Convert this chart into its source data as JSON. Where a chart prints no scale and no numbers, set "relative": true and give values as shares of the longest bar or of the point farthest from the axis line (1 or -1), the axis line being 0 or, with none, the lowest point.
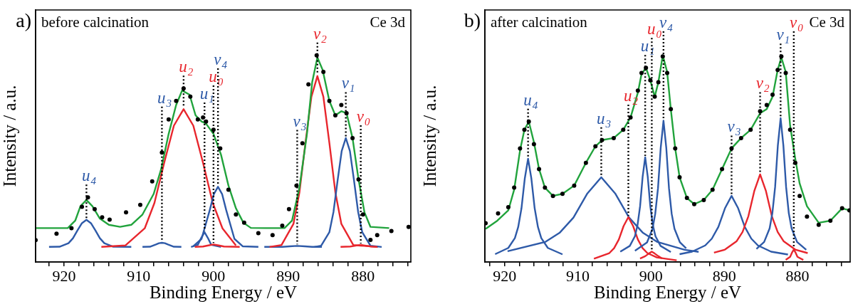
{
  "chart_data": [
    {
      "type": "line",
      "title": "a)",
      "xlabel": "Binding Energy / eV",
      "ylabel": "Intensity / a.u.",
      "annotations": [
        "before calcination",
        "Ce 3d"
      ],
      "relative": true,
      "grid": false,
      "legend": false,
      "line_style": "solid",
      "marker": "none",
      "xlim": [
        923.8,
        873.6
      ],
      "xticks": [
        {
          "value": 922,
          "label": null
        },
        920,
        {
          "value": 918,
          "label": null
        },
        {
          "value": 916,
          "label": null
        },
        {
          "value": 914,
          "label": null
        },
        {
          "value": 912,
          "label": null
        },
        910,
        {
          "value": 908,
          "label": null
        },
        {
          "value": 906,
          "label": null
        },
        {
          "value": 904,
          "label": null
        },
        {
          "value": 902,
          "label": null
        },
        900,
        {
          "value": 898,
          "label": null
        },
        {
          "value": 896,
          "label": null
        },
        {
          "value": 894,
          "label": null
        },
        {
          "value": 892,
          "label": null
        },
        890,
        {
          "value": 888,
          "label": null
        },
        {
          "value": 886,
          "label": null
        },
        {
          "value": 884,
          "label": null
        },
        {
          "value": 882,
          "label": null
        },
        880,
        {
          "value": 878,
          "label": null
        },
        {
          "value": 876,
          "label": null
        },
        {
          "value": 874,
          "label": null
        }
      ],
      "ref_lines": [
        {
          "axis": "x",
          "value": 917.0,
          "label": "u$_{4}$",
          "color": "#000000",
          "line_style": "dotted"
        },
        {
          "axis": "x",
          "value": 906.9,
          "label": "u$_{3}$",
          "color": "#000000",
          "line_style": "dotted"
        },
        {
          "axis": "x",
          "value": 904.0,
          "label": "u$_{2}$",
          "color": "#000000",
          "line_style": "dotted"
        },
        {
          "axis": "x",
          "value": 901.2,
          "label": "u$_{1}$",
          "color": "#000000",
          "line_style": "dotted"
        },
        {
          "axis": "x",
          "value": 900.0,
          "label": "u$_{0}$",
          "color": "#000000",
          "line_style": "dotted"
        },
        {
          "axis": "x",
          "value": 899.4,
          "label": "v$_{4}$",
          "color": "#000000",
          "line_style": "dotted"
        },
        {
          "axis": "x",
          "value": 888.8,
          "label": "v$_{3}$",
          "color": "#000000",
          "line_style": "dotted"
        },
        {
          "axis": "x",
          "value": 886.1,
          "label": "v$_{2}$",
          "color": "#000000",
          "line_style": "dotted"
        },
        {
          "axis": "x",
          "value": 882.3,
          "label": "v$_{1}$",
          "color": "#000000",
          "line_style": "dotted"
        },
        {
          "axis": "x",
          "value": 880.3,
          "label": "v$_{0}$",
          "color": "#000000",
          "line_style": "dotted"
        }
      ],
      "series": [
        {
          "type": "line",
          "color": "#2e5aa8",
          "x": [
            922,
            920.6,
            919.4,
            918.8,
            918.2,
            917.6,
            917.0,
            916.4,
            915.8,
            915.2,
            914.6,
            913.4,
            911
          ],
          "values": [
            0.073,
            0.074,
            0.091,
            0.115,
            0.153,
            0.188,
            0.204,
            0.188,
            0.153,
            0.115,
            0.091,
            0.074,
            0.073
          ]
        },
        {
          "type": "line",
          "color": "#e8262d",
          "x": [
            915,
            911.8,
            909.2,
            907.9,
            906.6,
            905.3,
            904.0,
            902.7,
            901.4,
            900.1,
            898.8,
            897
          ],
          "values": [
            0.073,
            0.08,
            0.163,
            0.286,
            0.48,
            0.66,
            0.74,
            0.66,
            0.48,
            0.286,
            0.163,
            0.08
          ]
        },
        {
          "type": "line",
          "color": "#2e5aa8",
          "x": [
            909.5,
            908.5,
            907.7,
            907.3,
            906.9,
            906.5,
            906.1,
            905.3,
            904.3
          ],
          "values": [
            0.073,
            0.074,
            0.085,
            0.091,
            0.093,
            0.091,
            0.085,
            0.074,
            0.073
          ]
        },
        {
          "type": "line",
          "color": "#2e5aa8",
          "x": [
            903,
            902.1,
            901.65,
            901.2,
            900.75,
            900.3,
            899
          ],
          "values": [
            0.073,
            0.083,
            0.116,
            0.144,
            0.116,
            0.083,
            0.073
          ]
        },
        {
          "type": "line",
          "color": "#e8262d",
          "x": [
            902.5,
            901.4,
            900.7,
            900,
            899.3,
            898.6,
            896.5
          ],
          "values": [
            0.073,
            0.075,
            0.08,
            0.085,
            0.08,
            0.075,
            0.073
          ]
        },
        {
          "type": "line",
          "color": "#2e5aa8",
          "x": [
            902.7,
            901.6,
            900.5,
            899.95,
            899.4,
            898.85,
            898.3,
            897.2,
            896.1,
            894
          ],
          "values": [
            0.076,
            0.112,
            0.251,
            0.329,
            0.364,
            0.329,
            0.251,
            0.112,
            0.076,
            0.073
          ]
        },
        {
          "type": "line",
          "color": "#2e5aa8",
          "x": [
            893.2,
            890.8,
            889.8,
            888.8,
            887.8,
            886.8,
            885.5
          ],
          "values": [
            0.073,
            0.073,
            0.076,
            0.078,
            0.076,
            0.073,
            0.073
          ]
        },
        {
          "type": "line",
          "color": "#e8262d",
          "x": [
            892.5,
            890.9,
            889.3,
            888.5,
            887.7,
            886.9,
            886.1,
            885.3,
            884.5,
            883.7,
            882.9,
            881.3,
            878
          ],
          "values": [
            0.073,
            0.082,
            0.185,
            0.338,
            0.577,
            0.8,
            0.9,
            0.8,
            0.577,
            0.338,
            0.185,
            0.082,
            0.073
          ]
        },
        {
          "type": "line",
          "color": "#2e5aa8",
          "x": [
            886.5,
            885.6,
            884.5,
            883.95,
            883.4,
            882.85,
            882.3,
            881.75,
            881.2,
            880.65,
            880.1,
            879.0,
            877.5
          ],
          "values": [
            0.073,
            0.079,
            0.144,
            0.242,
            0.394,
            0.537,
            0.6,
            0.537,
            0.394,
            0.242,
            0.144,
            0.079,
            0.073
          ]
        },
        {
          "type": "line",
          "color": "#e8262d",
          "x": [
            883,
            881.7,
            881,
            880.3,
            879.6,
            878.9,
            878.1
          ],
          "values": [
            0.073,
            0.075,
            0.079,
            0.083,
            0.079,
            0.075,
            0.073
          ]
        },
        {
          "type": "line",
          "color": "#21a33c",
          "x": [
            923.8,
            919.5,
            918.5,
            917.8,
            917.0,
            916.2,
            915.2,
            914.0,
            912.5,
            911,
            909.5,
            908.0,
            907,
            906,
            905,
            904.2,
            903.2,
            902.4,
            901.6,
            901,
            900,
            899,
            898,
            897,
            896,
            895,
            893,
            890.5,
            889.5,
            888.5,
            887.5,
            886.8,
            886.1,
            885.4,
            884.5,
            883.7,
            882.9,
            882.2,
            881.4,
            880.6,
            879.8,
            879,
            876.5
          ],
          "values": [
            0.164,
            0.164,
            0.2,
            0.27,
            0.3,
            0.27,
            0.21,
            0.18,
            0.17,
            0.18,
            0.23,
            0.33,
            0.45,
            0.62,
            0.76,
            0.83,
            0.81,
            0.71,
            0.68,
            0.67,
            0.62,
            0.52,
            0.37,
            0.26,
            0.19,
            0.165,
            0.164,
            0.164,
            0.2,
            0.36,
            0.62,
            0.87,
            0.99,
            0.93,
            0.78,
            0.71,
            0.73,
            0.72,
            0.6,
            0.4,
            0.24,
            0.17,
            0.164
          ]
        },
        {
          "type": "scatter",
          "marker": "circle",
          "color": "#000000",
          "x": [
            923.8,
            921,
            919,
            917.6,
            916.8,
            915.9,
            914.9,
            913.9,
            911.7,
            909.8,
            908.2,
            906.9,
            906.0,
            905.0,
            904.0,
            903.1,
            902.1,
            901.4,
            901.0,
            900.0,
            899.1,
            898.0,
            897.0,
            895.9,
            894.0,
            892.1,
            890.8,
            889.9,
            888.9,
            888.1,
            887.3,
            886.2,
            885.3,
            884.5,
            883.7,
            882.9,
            882.2,
            881.4,
            880.6,
            880.0,
            879.0,
            878.1,
            876.2,
            873.9
          ],
          "values": [
            0.106,
            0.137,
            0.164,
            0.267,
            0.313,
            0.256,
            0.216,
            0.205,
            0.24,
            0.277,
            0.39,
            0.53,
            0.69,
            0.78,
            0.84,
            0.8,
            0.69,
            0.7,
            0.68,
            0.64,
            0.55,
            0.35,
            0.23,
            0.19,
            0.14,
            0.13,
            0.176,
            0.256,
            0.37,
            0.575,
            0.86,
            1.0,
            0.92,
            0.78,
            0.71,
            0.76,
            0.72,
            0.6,
            0.4,
            0.23,
            0.107,
            0.13,
            0.15,
            0.17
          ]
        }
      ]
    },
    {
      "type": "line",
      "title": "b)",
      "xlabel": "Binding Energy / eV",
      "ylabel": "Intensity / a.u.",
      "annotations": [
        "after calcination",
        "Ce 3d"
      ],
      "relative": true,
      "grid": false,
      "legend": false,
      "line_style": "solid",
      "marker": "none",
      "xlim": [
        922.7,
        872.8
      ],
      "xticks": [
        {
          "value": 922,
          "label": null
        },
        920,
        {
          "value": 918,
          "label": null
        },
        {
          "value": 916,
          "label": null
        },
        {
          "value": 914,
          "label": null
        },
        {
          "value": 912,
          "label": null
        },
        910,
        {
          "value": 908,
          "label": null
        },
        {
          "value": 906,
          "label": null
        },
        {
          "value": 904,
          "label": null
        },
        {
          "value": 902,
          "label": null
        },
        900,
        {
          "value": 898,
          "label": null
        },
        {
          "value": 896,
          "label": null
        },
        {
          "value": 894,
          "label": null
        },
        {
          "value": 892,
          "label": null
        },
        890,
        {
          "value": 888,
          "label": null
        },
        {
          "value": 886,
          "label": null
        },
        {
          "value": 884,
          "label": null
        },
        {
          "value": 882,
          "label": null
        },
        880,
        {
          "value": 878,
          "label": null
        },
        {
          "value": 876,
          "label": null
        },
        {
          "value": 874,
          "label": null
        }
      ],
      "ref_lines": [
        {
          "axis": "x",
          "value": 916.8,
          "label": "u$_{4}$",
          "color": "#000000",
          "line_style": "dotted"
        },
        {
          "axis": "x",
          "value": 906.8,
          "label": "u$_{3}$",
          "color": "#000000",
          "line_style": "dotted"
        },
        {
          "axis": "x",
          "value": 903.1,
          "label": "u$_{2}$",
          "color": "#000000",
          "line_style": "dotted"
        },
        {
          "axis": "x",
          "value": 900.8,
          "label": "u$_{1}$",
          "color": "#000000",
          "line_style": "dotted"
        },
        {
          "axis": "x",
          "value": 899.9,
          "label": "u$_{0}$",
          "color": "#000000",
          "line_style": "dotted"
        },
        {
          "axis": "x",
          "value": 898.3,
          "label": "v$_{4}$",
          "color": "#000000",
          "line_style": "dotted"
        },
        {
          "axis": "x",
          "value": 889.0,
          "label": "v$_{3}$",
          "color": "#000000",
          "line_style": "dotted"
        },
        {
          "axis": "x",
          "value": 885.1,
          "label": "v$_{2}$",
          "color": "#000000",
          "line_style": "dotted"
        },
        {
          "axis": "x",
          "value": 882.3,
          "label": "v$_{1}$",
          "color": "#000000",
          "line_style": "dotted"
        },
        {
          "axis": "x",
          "value": 880.5,
          "label": "v$_{0}$",
          "color": "#000000",
          "line_style": "dotted"
        }
      ],
      "series": [
        {
          "type": "line",
          "color": "#2e5aa8",
          "x": [
            921.3,
            919.5,
            918.6,
            918.15,
            917.7,
            917.25,
            916.8,
            916.35,
            915.9,
            915.45,
            915.0,
            914.1,
            912.1
          ],
          "values": [
            0.038,
            0.068,
            0.116,
            0.169,
            0.26,
            0.404,
            0.5,
            0.404,
            0.26,
            0.169,
            0.116,
            0.068,
            0.037
          ]
        },
        {
          "type": "line",
          "color": "#2e5aa8",
          "x": [
            919.6,
            914.4,
            912.5,
            910.6,
            908.7,
            906.8,
            904.9,
            903.0,
            901.1,
            899.2,
            895.4,
            893.5
          ],
          "values": [
            0.052,
            0.098,
            0.141,
            0.215,
            0.332,
            0.41,
            0.332,
            0.215,
            0.141,
            0.098,
            0.059,
            0.049
          ]
        },
        {
          "type": "line",
          "color": "#e8262d",
          "x": [
            907.8,
            905.7,
            905.05,
            904.4,
            903.75,
            903.1,
            902.45,
            901.8,
            901.15,
            900.5,
            899.2,
            896.5
          ],
          "values": [
            0.016,
            0.043,
            0.067,
            0.109,
            0.174,
            0.217,
            0.174,
            0.109,
            0.067,
            0.043,
            0.022,
            0.008
          ]
        },
        {
          "type": "line",
          "color": "#2e5aa8",
          "x": [
            904.2,
            902.9,
            902.2,
            901.85,
            901.5,
            901.15,
            900.8,
            900.45,
            900.1,
            899.75,
            899.4,
            898.7,
            897.3
          ],
          "values": [
            0.05,
            0.078,
            0.125,
            0.178,
            0.269,
            0.412,
            0.507,
            0.412,
            0.269,
            0.178,
            0.125,
            0.078,
            0.048
          ]
        },
        {
          "type": "line",
          "color": "#e8262d",
          "x": [
            901.5,
            900.8,
            900.3,
            899.9,
            899.5,
            899.0,
            898.5
          ],
          "values": [
            0.017,
            0.028,
            0.041,
            0.05,
            0.041,
            0.028,
            0.017
          ]
        },
        {
          "type": "line",
          "color": "#2e5aa8",
          "x": [
            902.2,
            900.55,
            899.8,
            899.43,
            899.05,
            898.68,
            898.3,
            897.92,
            897.55,
            897.18,
            896.8,
            896.05,
            895.2
          ],
          "values": [
            0.054,
            0.095,
            0.161,
            0.233,
            0.357,
            0.553,
            0.684,
            0.553,
            0.357,
            0.233,
            0.161,
            0.095,
            0.066
          ]
        },
        {
          "type": "line",
          "color": "#2e5aa8",
          "x": [
            896.1,
            894.4,
            892.6,
            891.7,
            890.8,
            889.9,
            889.0,
            888.1,
            887.2,
            886.3,
            885.4,
            883.6,
            881.3
          ],
          "values": [
            0.038,
            0.05,
            0.08,
            0.113,
            0.17,
            0.26,
            0.32,
            0.26,
            0.17,
            0.113,
            0.08,
            0.05,
            0.036
          ]
        },
        {
          "type": "line",
          "color": "#e8262d",
          "x": [
            891.4,
            889.9,
            888.3,
            887.5,
            886.7,
            885.9,
            885.1,
            884.3,
            883.5,
            882.7,
            881.9,
            880.3,
            878.6
          ],
          "values": [
            0.045,
            0.06,
            0.101,
            0.145,
            0.222,
            0.343,
            0.424,
            0.343,
            0.222,
            0.145,
            0.101,
            0.06,
            0.043
          ]
        },
        {
          "type": "line",
          "color": "#2e5aa8",
          "x": [
            885.6,
            884.55,
            883.8,
            883.43,
            883.05,
            882.68,
            882.3,
            881.92,
            881.55,
            881.18,
            880.8,
            880.05,
            878.8
          ],
          "values": [
            0.063,
            0.097,
            0.163,
            0.236,
            0.363,
            0.563,
            0.696,
            0.563,
            0.363,
            0.236,
            0.163,
            0.097,
            0.059
          ]
        },
        {
          "type": "line",
          "color": "#e8262d",
          "x": [
            881.6,
            881.0,
            880.75,
            880.5,
            880.25,
            880.0,
            879.2
          ],
          "values": [
            0.01,
            0.025,
            0.045,
            0.06,
            0.045,
            0.025,
            0.01
          ]
        },
        {
          "type": "line",
          "color": "#21a33c",
          "x": [
            922.6,
            921,
            919.5,
            918.7,
            917.9,
            917.3,
            916.7,
            916.0,
            915.3,
            914.5,
            913.4,
            912.1,
            910.5,
            908.9,
            907.6,
            906.7,
            905.1,
            903.8,
            902.8,
            901.8,
            901.3,
            900.7,
            900.1,
            899.5,
            899.0,
            898.4,
            897.8,
            897.3,
            896.7,
            896.1,
            895.1,
            894.1,
            892.8,
            891.6,
            890.3,
            889.0,
            887.7,
            886.4,
            885.1,
            884.2,
            883.4,
            882.7,
            882.2,
            881.6,
            881.0,
            880.3,
            879.7,
            878.7,
            877.1,
            875.5,
            873.9,
            872.9
          ],
          "values": [
            0.16,
            0.2,
            0.25,
            0.35,
            0.54,
            0.64,
            0.68,
            0.58,
            0.45,
            0.36,
            0.32,
            0.33,
            0.37,
            0.48,
            0.56,
            0.59,
            0.6,
            0.64,
            0.7,
            0.82,
            0.91,
            0.94,
            0.88,
            0.8,
            0.87,
            1.0,
            0.92,
            0.74,
            0.55,
            0.41,
            0.31,
            0.28,
            0.3,
            0.35,
            0.45,
            0.55,
            0.6,
            0.64,
            0.72,
            0.74,
            0.8,
            0.93,
            0.99,
            0.92,
            0.66,
            0.5,
            0.38,
            0.27,
            0.19,
            0.2,
            0.26,
            0.25
          ]
        },
        {
          "type": "scatter",
          "marker": "circle",
          "color": "#000000",
          "x": [
            922.6,
            920.9,
            919.5,
            918.7,
            917.9,
            917.3,
            916.7,
            916.0,
            915.3,
            914.5,
            913.4,
            912.1,
            910.5,
            908.9,
            907.6,
            906.7,
            905.1,
            903.8,
            902.8,
            901.8,
            901.3,
            900.7,
            900.1,
            899.5,
            899.0,
            898.4,
            897.8,
            897.3,
            896.7,
            896.1,
            895.1,
            894.1,
            892.8,
            891.6,
            890.3,
            889.0,
            887.7,
            886.4,
            885.1,
            884.2,
            883.4,
            882.7,
            882.2,
            881.6,
            881.0,
            880.3,
            879.7,
            878.7,
            877.1,
            875.5,
            873.9,
            872.9
          ],
          "values": [
            0.188,
            0.235,
            0.265,
            0.36,
            0.55,
            0.64,
            0.68,
            0.57,
            0.45,
            0.36,
            0.32,
            0.33,
            0.37,
            0.48,
            0.56,
            0.59,
            0.6,
            0.64,
            0.7,
            0.83,
            0.915,
            0.94,
            0.88,
            0.8,
            0.87,
            0.995,
            0.915,
            0.74,
            0.55,
            0.41,
            0.31,
            0.28,
            0.3,
            0.35,
            0.45,
            0.55,
            0.6,
            0.64,
            0.73,
            0.76,
            0.81,
            0.93,
            0.995,
            0.915,
            0.64,
            0.48,
            0.32,
            0.22,
            0.18,
            0.2,
            0.26,
            0.25
          ]
        }
      ]
    }
  ]
}
